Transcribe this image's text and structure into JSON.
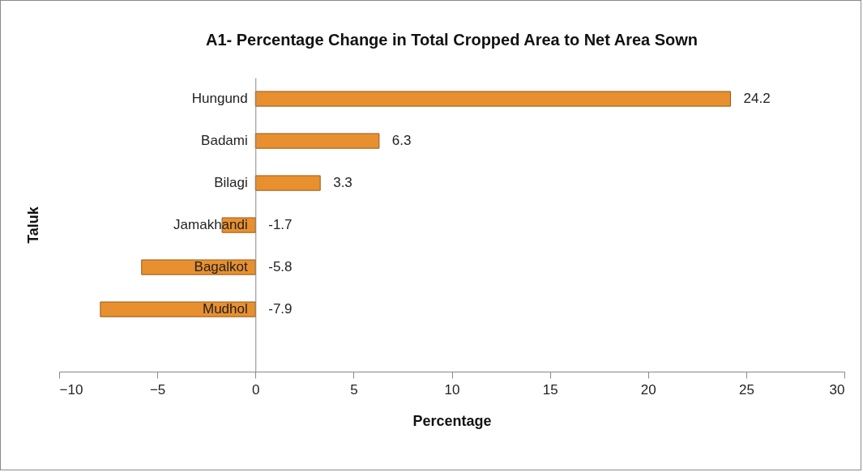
{
  "chart_data": {
    "type": "bar",
    "orientation": "horizontal",
    "title": "A1- Percentage  Change in Total Cropped Area to Net Area Sown",
    "xlabel": "Percentage",
    "ylabel": "Taluk",
    "categories": [
      "Hungund",
      "Badami",
      "Bilagi",
      "Jamakhandi",
      "Bagalkot",
      "Mudhol"
    ],
    "values": [
      24.2,
      6.3,
      3.3,
      -1.7,
      -5.8,
      -7.9
    ],
    "color": "#e8902f",
    "xlim": [
      -10,
      30
    ],
    "xticks": [
      -10,
      -5,
      0,
      5,
      10,
      15,
      20,
      25,
      30
    ],
    "data_labels": true
  }
}
